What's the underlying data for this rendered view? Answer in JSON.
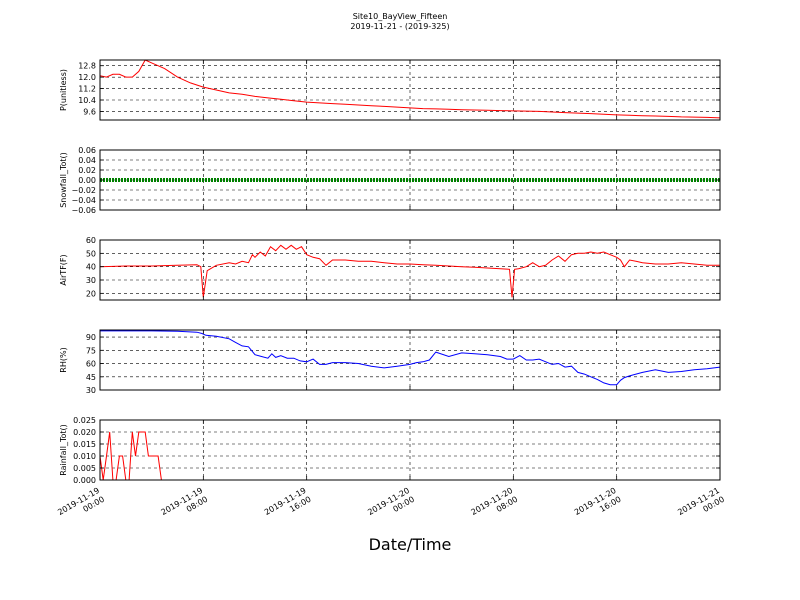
{
  "figure": {
    "title": "Site10_BayView_Fifteen",
    "subtitle": "2019-11-21 - (2019-325)",
    "xlabel": "Date/Time"
  },
  "chart_data": [
    {
      "type": "line",
      "ylabel": "P(unitless)",
      "color": "#ff0000",
      "xlim": [
        0,
        48
      ],
      "ylim": [
        9.0,
        13.2
      ],
      "yticks": [
        9.6,
        10.4,
        11.2,
        12.0,
        12.8
      ],
      "ytick_labels": [
        "9.6",
        "10.4",
        "11.2",
        "12.0",
        "12.8"
      ],
      "grid": true,
      "x": [
        0,
        0.5,
        1,
        1.5,
        2,
        2.5,
        3,
        3.5,
        4,
        5,
        6,
        7,
        8,
        9,
        10,
        11,
        12,
        13,
        14,
        15,
        16,
        17,
        18,
        19,
        20,
        21,
        22,
        23,
        24,
        25,
        26,
        27,
        28,
        29,
        30,
        31,
        32,
        33,
        34,
        35,
        36,
        37,
        38,
        39,
        40,
        41,
        42,
        43,
        44,
        45,
        46,
        47,
        48
      ],
      "values": [
        12.1,
        12.0,
        12.2,
        12.2,
        12.0,
        12.0,
        12.4,
        13.2,
        13.0,
        12.6,
        12.0,
        11.6,
        11.3,
        11.1,
        10.9,
        10.8,
        10.65,
        10.55,
        10.45,
        10.35,
        10.25,
        10.2,
        10.15,
        10.1,
        10.05,
        10.0,
        9.95,
        9.9,
        9.85,
        9.8,
        9.78,
        9.75,
        9.72,
        9.7,
        9.68,
        9.66,
        9.64,
        9.62,
        9.6,
        9.56,
        9.52,
        9.48,
        9.45,
        9.4,
        9.36,
        9.33,
        9.3,
        9.28,
        9.25,
        9.22,
        9.2,
        9.18,
        9.15
      ]
    },
    {
      "type": "line",
      "ylabel": "Snowfall_Tot()",
      "color": "#008000",
      "xlim": [
        0,
        48
      ],
      "ylim": [
        -0.06,
        0.06
      ],
      "yticks": [
        -0.06,
        -0.04,
        -0.02,
        0.0,
        0.02,
        0.04,
        0.06
      ],
      "ytick_labels": [
        "−0.06",
        "−0.04",
        "−0.02",
        "0.00",
        "0.02",
        "0.04",
        "0.06"
      ],
      "grid": true,
      "x": [
        0,
        48
      ],
      "values": [
        0,
        0
      ]
    },
    {
      "type": "line",
      "ylabel": "AirTF(F)",
      "color": "#ff0000",
      "xlim": [
        0,
        48
      ],
      "ylim": [
        15,
        60
      ],
      "yticks": [
        20,
        30,
        40,
        50,
        60
      ],
      "ytick_labels": [
        "20",
        "30",
        "40",
        "50",
        "60"
      ],
      "grid": true,
      "x": [
        0,
        2,
        4,
        6,
        7.5,
        7.8,
        8.0,
        8.3,
        9,
        10,
        10.5,
        11,
        11.5,
        11.8,
        12,
        12.4,
        12.8,
        13.2,
        13.6,
        14,
        14.4,
        14.8,
        15.2,
        15.6,
        16,
        16.5,
        17,
        17.5,
        18,
        19,
        20,
        21,
        22,
        23,
        24,
        25,
        26,
        27,
        28,
        29,
        30,
        31,
        31.7,
        31.9,
        32.1,
        32.4,
        33,
        33.5,
        34,
        34.5,
        35,
        35.5,
        36,
        36.5,
        37,
        37.5,
        38,
        38.5,
        39,
        39.5,
        40,
        40.3,
        40.6,
        41,
        41.5,
        42,
        43,
        44,
        45,
        46,
        47,
        48
      ],
      "values": [
        40,
        40.5,
        40.5,
        41,
        41.5,
        40,
        17,
        37,
        41,
        43,
        42,
        44,
        43,
        49,
        47,
        51,
        48,
        55,
        52,
        56,
        53,
        56,
        53,
        55,
        49,
        47,
        46,
        41,
        45,
        45,
        44,
        44,
        43,
        42,
        42,
        41.5,
        41,
        40.5,
        40,
        39.5,
        39,
        38.5,
        38,
        17,
        38,
        38.5,
        40,
        43,
        40,
        41,
        45,
        48,
        44,
        49,
        50,
        50,
        51,
        50,
        51,
        49,
        47,
        45,
        40,
        45,
        44,
        43,
        42,
        42,
        43,
        42,
        41,
        41
      ]
    },
    {
      "type": "line",
      "ylabel": "RH(%)",
      "color": "#0000ff",
      "xlim": [
        0,
        48
      ],
      "ylim": [
        30,
        98
      ],
      "yticks": [
        30,
        45,
        60,
        75,
        90
      ],
      "ytick_labels": [
        "30",
        "45",
        "60",
        "75",
        "90"
      ],
      "grid": true,
      "x": [
        0,
        2,
        4,
        6,
        7.5,
        7.9,
        8.2,
        9,
        10,
        10.5,
        11,
        11.5,
        12,
        12.5,
        13,
        13.3,
        13.6,
        14,
        14.5,
        15,
        15.5,
        16,
        16.5,
        17,
        17.5,
        18,
        19,
        20,
        21,
        22,
        23,
        24,
        24.5,
        25,
        25.5,
        26,
        27,
        28,
        29,
        30,
        31,
        31.5,
        32,
        32.5,
        33,
        33.5,
        34,
        35,
        35.5,
        36,
        36.5,
        37,
        37.5,
        38,
        38.5,
        39,
        39.5,
        40,
        40.3,
        40.6,
        41,
        41.5,
        42,
        43,
        44,
        45,
        46,
        47,
        48
      ],
      "values": [
        97,
        97,
        97,
        96.5,
        95.5,
        94,
        92,
        91,
        88,
        84,
        80,
        79,
        70,
        68,
        66,
        71,
        67,
        69,
        66,
        66,
        63,
        62,
        65,
        59,
        59,
        61,
        61,
        60,
        57,
        55,
        57,
        59,
        61,
        62,
        64,
        73,
        68,
        72,
        71,
        70,
        68,
        65,
        65,
        69,
        64,
        64,
        65,
        59,
        60,
        56,
        57,
        50,
        48,
        45,
        42,
        38,
        36,
        36,
        41,
        44,
        46,
        48,
        50,
        53,
        50,
        51,
        53,
        54,
        56
      ]
    },
    {
      "type": "line",
      "ylabel": "Rainfall_Tot()",
      "color": "#ff0000",
      "xlim": [
        0,
        48
      ],
      "ylim": [
        0,
        0.025
      ],
      "yticks": [
        0.0,
        0.005,
        0.01,
        0.015,
        0.02,
        0.025
      ],
      "ytick_labels": [
        "0.000",
        "0.005",
        "0.010",
        "0.015",
        "0.020",
        "0.025"
      ],
      "grid": true,
      "x": [
        0,
        0.25,
        0.5,
        0.75,
        1.0,
        1.25,
        1.5,
        1.75,
        2.0,
        2.25,
        2.5,
        2.75,
        3.0,
        3.25,
        3.5,
        3.75,
        4.0,
        4.25,
        4.5,
        4.75,
        5.0,
        48
      ],
      "values": [
        0.01,
        0.0,
        0.01,
        0.02,
        0.0,
        0.0,
        0.01,
        0.01,
        0.0,
        0.0,
        0.02,
        0.01,
        0.02,
        0.02,
        0.02,
        0.01,
        0.01,
        0.01,
        0.01,
        0.0,
        0.0,
        0.0
      ]
    }
  ],
  "x_axis": {
    "ticks": [
      0,
      8,
      16,
      24,
      32,
      40,
      48
    ],
    "tick_labels_line1": [
      "2019-11-19",
      "2019-11-19",
      "2019-11-19",
      "2019-11-20",
      "2019-11-20",
      "2019-11-20",
      "2019-11-21"
    ],
    "tick_labels_line2": [
      "00:00",
      "08:00",
      "16:00",
      "00:00",
      "08:00",
      "16:00",
      "00:00"
    ]
  }
}
